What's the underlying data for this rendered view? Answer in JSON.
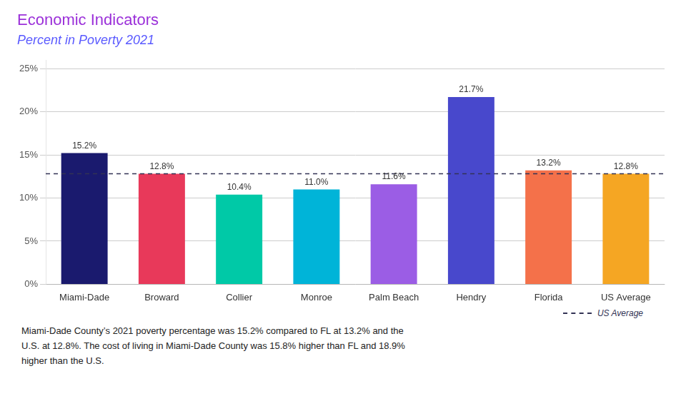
{
  "chart_data": {
    "type": "bar",
    "title": "Economic Indicators",
    "title_color": "#9b30d9",
    "subtitle": "Percent in Poverty 2021",
    "subtitle_color": "#5a5aff",
    "categories": [
      "Miami-Dade",
      "Broward",
      "Collier",
      "Monroe",
      "Palm Beach",
      "Hendry",
      "Florida",
      "US Average"
    ],
    "values": [
      15.2,
      12.8,
      10.4,
      11.0,
      11.6,
      21.7,
      13.2,
      12.8
    ],
    "value_labels": [
      "15.2%",
      "12.8%",
      "10.4%",
      "11.0%",
      "11.6%",
      "21.7%",
      "13.2%",
      "12.8%"
    ],
    "colors": [
      "#1a1a6e",
      "#e8395a",
      "#00c9a7",
      "#00b4d8",
      "#9b5de5",
      "#4848cc",
      "#f4714a",
      "#f5a623"
    ],
    "data_labels": true,
    "ylim": [
      0,
      26
    ],
    "yticks": [
      {
        "value": 0,
        "label": "0%"
      },
      {
        "value": 5,
        "label": "5%"
      },
      {
        "value": 10,
        "label": "10%"
      },
      {
        "value": 15,
        "label": "15%"
      },
      {
        "value": 20,
        "label": "20%"
      },
      {
        "value": 25,
        "label": "25%"
      }
    ],
    "grid": true,
    "annotations": [
      {
        "type": "hline",
        "y": 12.8,
        "label": "US Average",
        "color": "#333355",
        "line_style": "dashed"
      }
    ],
    "footnote": "Miami-Dade County’s 2021 poverty percentage was 15.2% compared to FL at 13.2% and the\nU.S. at 12.8%. The cost of living in Miami-Dade County was 15.8% higher than FL and 18.9%\nhigher than the U.S."
  }
}
